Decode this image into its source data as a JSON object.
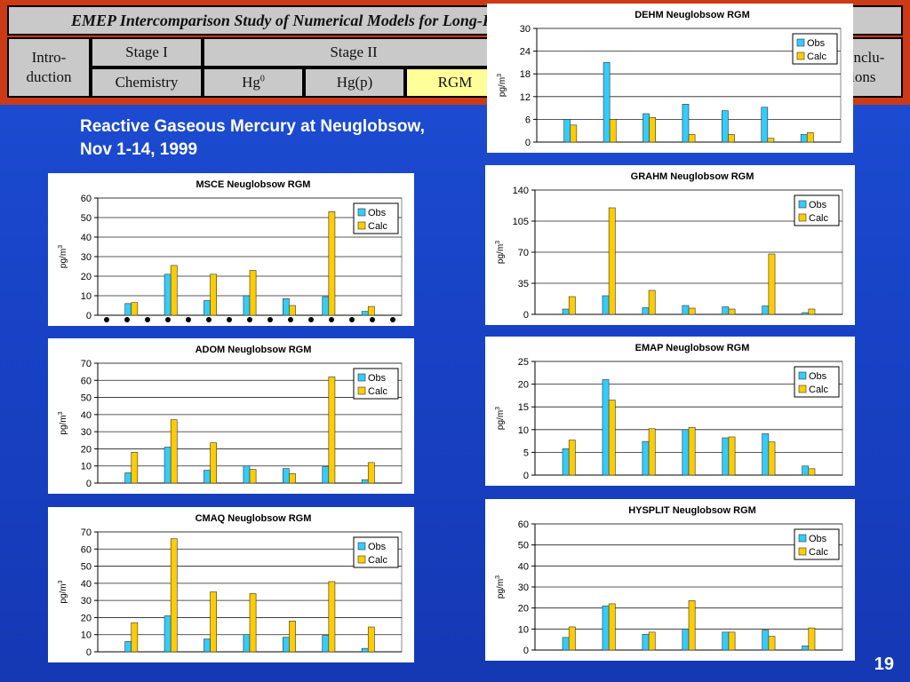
{
  "nav": {
    "title": "EMEP Intercomparison Study of Numerical Models for Long-Range Atmospheric Transport of Mercury",
    "top": [
      {
        "label": "Intro-\nduction"
      },
      {
        "label": "Stage I"
      },
      {
        "label": "Stage II"
      },
      {
        "label": "Conclu-\nsions"
      }
    ],
    "sub": [
      {
        "label": "Chemistry"
      },
      {
        "label": "Hg",
        "sup": "0"
      },
      {
        "label": "Hg(p)"
      },
      {
        "label": "RGM"
      }
    ]
  },
  "heading": "Reactive Gaseous Mercury at Neuglobsow, Nov 1-14, 1999",
  "page_number": "19",
  "colors": {
    "obs": "#33ccff",
    "calc": "#ffcc00"
  },
  "chart_data": [
    {
      "id": "msce",
      "type": "bar",
      "title": "MSCE Neuglobsow RGM",
      "ylabel": "pg/m3",
      "ylim": [
        0,
        60
      ],
      "yticks": [
        0,
        10,
        20,
        30,
        40,
        50,
        60
      ],
      "x_marker_ticks": true,
      "series": [
        {
          "name": "Obs",
          "values": [
            6,
            21,
            7.5,
            10,
            8.5,
            9.5,
            2
          ]
        },
        {
          "name": "Calc",
          "values": [
            6.5,
            25.5,
            21,
            23,
            5,
            53,
            4.5
          ]
        }
      ]
    },
    {
      "id": "adom",
      "type": "bar",
      "title": "ADOM Neuglobsow RGM",
      "ylabel": "pg/m3",
      "ylim": [
        0,
        70
      ],
      "yticks": [
        0,
        10,
        20,
        30,
        40,
        50,
        60,
        70
      ],
      "series": [
        {
          "name": "Obs",
          "values": [
            6,
            21,
            7.5,
            10,
            8.5,
            9.5,
            2
          ]
        },
        {
          "name": "Calc",
          "values": [
            18,
            37,
            23.5,
            8,
            5.5,
            62,
            12
          ]
        }
      ]
    },
    {
      "id": "cmaq",
      "type": "bar",
      "title": "CMAQ Neuglobsow RGM",
      "ylabel": "pg/m3",
      "ylim": [
        0,
        70
      ],
      "yticks": [
        0,
        10,
        20,
        30,
        40,
        50,
        60,
        70
      ],
      "series": [
        {
          "name": "Obs",
          "values": [
            6,
            21,
            7.5,
            10,
            8.5,
            9.5,
            2
          ]
        },
        {
          "name": "Calc",
          "values": [
            17,
            66,
            35,
            34,
            18,
            41,
            14.5
          ]
        }
      ]
    },
    {
      "id": "dehm",
      "type": "bar",
      "title": "DEHM Neuglobsow RGM",
      "ylabel": "pg/m3",
      "ylim": [
        0,
        30
      ],
      "yticks": [
        0,
        6,
        12,
        18,
        24,
        30
      ],
      "series": [
        {
          "name": "Obs",
          "values": [
            6,
            21,
            7.5,
            10,
            8.3,
            9.2,
            2
          ]
        },
        {
          "name": "Calc",
          "values": [
            4.5,
            6,
            6.5,
            2,
            2,
            1,
            2.5
          ]
        }
      ]
    },
    {
      "id": "grahm",
      "type": "bar",
      "title": "GRAHM Neuglobsow RGM",
      "ylabel": "pg/m3",
      "ylim": [
        0,
        140
      ],
      "yticks": [
        0,
        35,
        70,
        105,
        140
      ],
      "series": [
        {
          "name": "Obs",
          "values": [
            6,
            21,
            7.5,
            10,
            8.5,
            9.5,
            2
          ]
        },
        {
          "name": "Calc",
          "values": [
            20,
            120,
            27,
            7,
            6,
            68,
            6
          ]
        }
      ]
    },
    {
      "id": "emap",
      "type": "bar",
      "title": "EMAP Neuglobsow RGM",
      "ylabel": "pg/m3",
      "ylim": [
        0,
        25
      ],
      "yticks": [
        0,
        5,
        10,
        15,
        20,
        25
      ],
      "series": [
        {
          "name": "Obs",
          "values": [
            5.8,
            21,
            7.4,
            10,
            8.2,
            9.1,
            2
          ]
        },
        {
          "name": "Calc",
          "values": [
            7.7,
            16.5,
            10.2,
            10.5,
            8.4,
            7.3,
            1.4
          ]
        }
      ]
    },
    {
      "id": "hysplit",
      "type": "bar",
      "title": "HYSPLIT Neuglobsow RGM",
      "ylabel": "pg/m3",
      "ylim": [
        0,
        60
      ],
      "yticks": [
        0,
        10,
        20,
        30,
        40,
        50,
        60
      ],
      "series": [
        {
          "name": "Obs",
          "values": [
            6,
            21,
            7.5,
            10,
            8.5,
            9.5,
            2
          ]
        },
        {
          "name": "Calc",
          "values": [
            11,
            22,
            8.5,
            23.5,
            8.5,
            6.5,
            10.5
          ]
        }
      ]
    }
  ]
}
